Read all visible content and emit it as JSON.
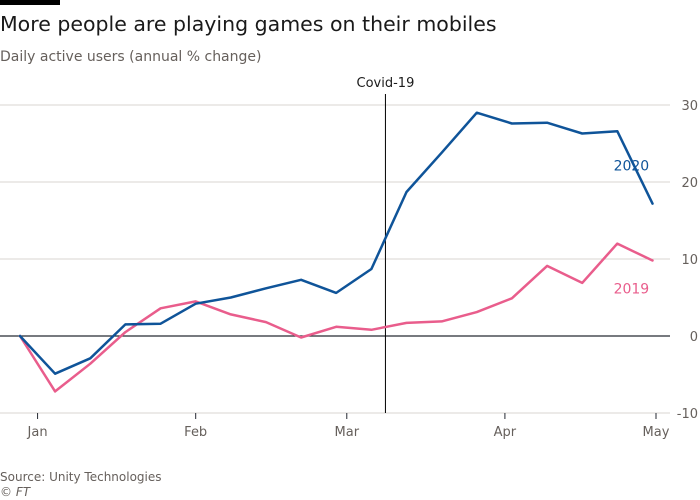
{
  "header": {
    "title": "More people are playing games on their mobiles",
    "subtitle": "Daily active users (annual % change)"
  },
  "footer": {
    "source": "Source: Unity Technologies",
    "credit": "© FT"
  },
  "colors": {
    "series_2020": "#0f5499",
    "series_2019": "#e95d8c",
    "grid": "#d8d4d1",
    "zero_line": "#262a33",
    "annotation": "#000000"
  },
  "chart_data": {
    "type": "line",
    "title": "More people are playing games on their mobiles",
    "subtitle": "Daily active users (annual % change)",
    "xlabel": "",
    "ylabel": "",
    "x_ticks": [
      {
        "label": "Jan",
        "week": 0.5
      },
      {
        "label": "Feb",
        "week": 5.0
      },
      {
        "label": "Mar",
        "week": 9.3
      },
      {
        "label": "Apr",
        "week": 13.8
      },
      {
        "label": "May",
        "week": 18.1
      }
    ],
    "x_range": [
      0,
      18.1
    ],
    "ylim": [
      -10,
      30
    ],
    "y_ticks": [
      -10,
      0,
      10,
      20,
      30
    ],
    "y_axis_side": "right",
    "grid": true,
    "annotation": {
      "label": "Covid-19",
      "week": 10.4
    },
    "series": [
      {
        "name": "2020",
        "color": "#0f5499",
        "x": [
          0,
          1,
          2,
          3,
          4,
          5,
          6,
          7,
          8,
          9,
          10,
          11,
          12,
          13,
          14,
          15,
          16,
          17,
          18
        ],
        "values": [
          0,
          -4.9,
          -2.9,
          1.5,
          1.6,
          4.2,
          5.0,
          6.2,
          7.3,
          5.6,
          8.7,
          18.7,
          23.8,
          29.0,
          27.6,
          27.7,
          26.3,
          26.6,
          17.2
        ]
      },
      {
        "name": "2019",
        "color": "#e95d8c",
        "x": [
          0,
          1,
          2,
          3,
          4,
          5,
          6,
          7,
          8,
          9,
          10,
          11,
          12,
          13,
          14,
          15,
          16,
          17,
          18
        ],
        "values": [
          0,
          -7.2,
          -3.6,
          0.5,
          3.6,
          4.5,
          2.8,
          1.8,
          -0.2,
          1.2,
          0.8,
          1.7,
          1.9,
          3.1,
          4.9,
          9.1,
          6.9,
          12.0,
          9.8
        ]
      }
    ]
  }
}
